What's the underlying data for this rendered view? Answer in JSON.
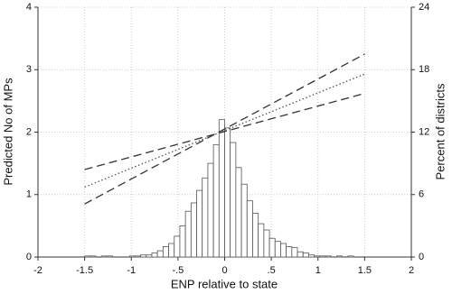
{
  "chart_data": {
    "type": "histogram",
    "xlabel": "ENP relative to state",
    "ylabel": "Predicted No of MPs",
    "y2label": "Percent of districts",
    "xlim": [
      -2,
      2
    ],
    "xticks": [
      -2,
      -1.5,
      -1,
      {
        "value": -0.5,
        "label": "-.5"
      },
      0,
      {
        "value": 0.5,
        "label": ".5"
      },
      1,
      1.5,
      2
    ],
    "ylim": [
      0,
      4
    ],
    "yticks": [
      0,
      1,
      2,
      3,
      4
    ],
    "y2lim": [
      0,
      24
    ],
    "y2ticks": [
      0,
      6,
      12,
      18,
      24
    ],
    "grid": true,
    "axis": "y2",
    "color": "#ffffff",
    "edgecolor": "#555555",
    "bins": [
      -1.5,
      -1.44,
      -1.38,
      -1.32,
      -1.26,
      -1.2,
      -1.14,
      -1.08,
      -1.02,
      -0.96,
      -0.9,
      -0.84,
      -0.78,
      -0.72,
      -0.66,
      -0.6,
      -0.54,
      -0.48,
      -0.42,
      -0.36,
      -0.3,
      -0.24,
      -0.18,
      -0.12,
      -0.06,
      0,
      0.06,
      0.12,
      0.18,
      0.24,
      0.3,
      0.36,
      0.42,
      0.48,
      0.54,
      0.6,
      0.66,
      0.72,
      0.78,
      0.84,
      0.9,
      0.96,
      1.02,
      1.08,
      1.14,
      1.2,
      1.26,
      1.32,
      1.38,
      1.44,
      1.5
    ],
    "values": [
      0.1,
      0.1,
      0,
      0.1,
      0.1,
      0,
      0,
      0,
      0.1,
      0.1,
      0.2,
      0.2,
      0.4,
      0.6,
      1.0,
      1.3,
      2.0,
      3.0,
      4.4,
      5.2,
      6.4,
      7.6,
      9.0,
      10.8,
      13.2,
      12.4,
      11.0,
      8.6,
      7.0,
      5.4,
      4.2,
      3.2,
      2.6,
      1.8,
      1.5,
      1.3,
      1.0,
      0.9,
      0.5,
      0.4,
      0.2,
      0.1,
      0.1,
      0.1,
      0,
      0.1,
      0,
      0.1,
      0,
      0
    ],
    "lines": {
      "x": [
        -1.5,
        1.5
      ],
      "series": [
        {
          "type": "line",
          "dash": "dashed",
          "color": "#333333",
          "values": [
            1.4,
            2.62
          ]
        },
        {
          "type": "line",
          "dash": "dashed",
          "color": "#333333",
          "values": [
            0.85,
            3.25
          ]
        },
        {
          "type": "line",
          "dash": "dotted",
          "color": "#555555",
          "values": [
            1.12,
            2.93
          ]
        }
      ]
    }
  }
}
